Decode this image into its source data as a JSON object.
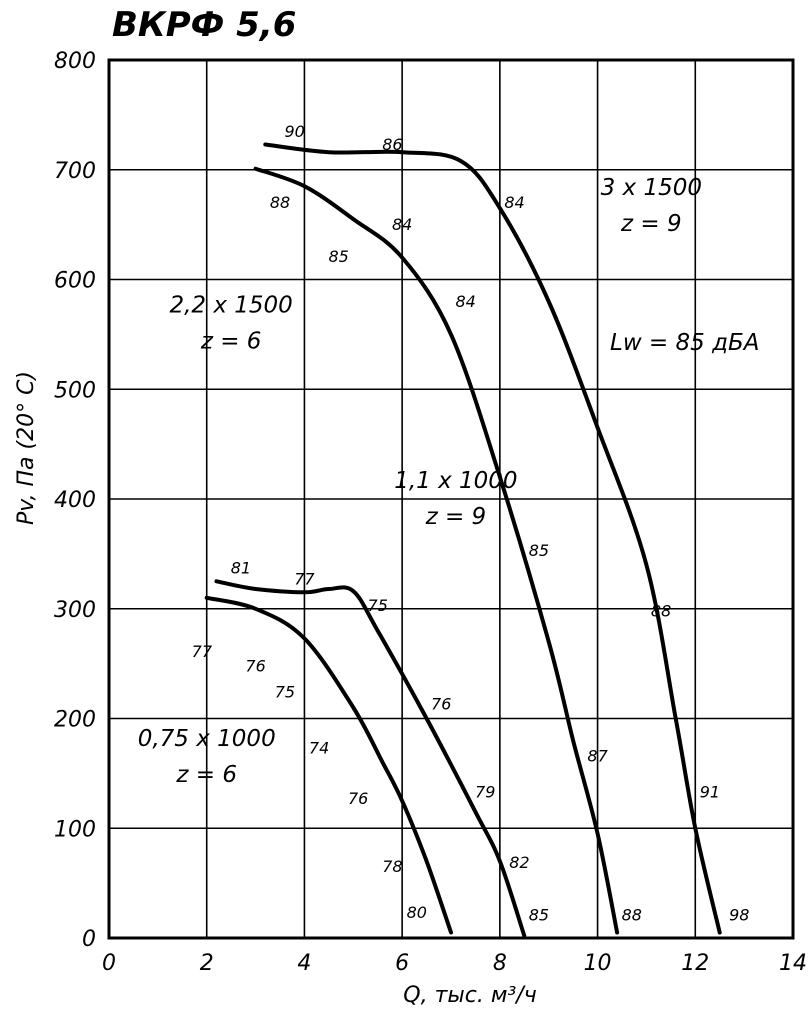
{
  "chart_data": {
    "type": "line",
    "title": "ВКРФ 5,6",
    "xlabel": "Q, тыс. м³/ч",
    "ylabel": "Pv, Па (20° С)",
    "xlim": [
      0,
      14
    ],
    "ylim": [
      0,
      800
    ],
    "grid": true,
    "x_ticks": [
      "0",
      "2",
      "4",
      "6",
      "8",
      "10",
      "12",
      "14"
    ],
    "y_ticks": [
      "0",
      "100",
      "200",
      "300",
      "400",
      "500",
      "600",
      "700",
      "800"
    ],
    "series": [
      {
        "name": "0,75 x 1000",
        "z": "z = 6",
        "points": [
          [
            2.0,
            310
          ],
          [
            3.0,
            300
          ],
          [
            4.0,
            273
          ],
          [
            5.0,
            210
          ],
          [
            5.6,
            160
          ],
          [
            6.0,
            125
          ],
          [
            6.5,
            70
          ],
          [
            7.0,
            5
          ]
        ]
      },
      {
        "name": "1,1 x 1000",
        "z": "z = 9",
        "points": [
          [
            2.2,
            325
          ],
          [
            3.0,
            318
          ],
          [
            4.0,
            315
          ],
          [
            4.5,
            318
          ],
          [
            5.0,
            316
          ],
          [
            5.5,
            280
          ],
          [
            6.5,
            200
          ],
          [
            7.5,
            115
          ],
          [
            8.0,
            70
          ],
          [
            8.5,
            2
          ]
        ]
      },
      {
        "name": "2,2 x 1500",
        "z": "z = 6",
        "points": [
          [
            3.0,
            701
          ],
          [
            4.0,
            685
          ],
          [
            5.0,
            655
          ],
          [
            6.0,
            620
          ],
          [
            7.0,
            550
          ],
          [
            8.0,
            420
          ],
          [
            9.0,
            270
          ],
          [
            9.5,
            180
          ],
          [
            10.0,
            95
          ],
          [
            10.4,
            5
          ]
        ]
      },
      {
        "name": "3 x 1500",
        "z": "z = 9",
        "points": [
          [
            3.2,
            723
          ],
          [
            4.5,
            716
          ],
          [
            6.0,
            716
          ],
          [
            7.2,
            708
          ],
          [
            8.0,
            665
          ],
          [
            9.0,
            580
          ],
          [
            10.0,
            465
          ],
          [
            11.0,
            340
          ],
          [
            11.6,
            200
          ],
          [
            12.0,
            100
          ],
          [
            12.5,
            5
          ]
        ]
      }
    ],
    "annotations": {
      "lw": "Lw = 85 дБА",
      "noise": [
        {
          "text": "90",
          "x": 3.8,
          "y": 730
        },
        {
          "text": "86",
          "x": 5.8,
          "y": 718
        },
        {
          "text": "84",
          "x": 8.3,
          "y": 665
        },
        {
          "text": "88",
          "x": 3.5,
          "y": 665
        },
        {
          "text": "84",
          "x": 6.0,
          "y": 645
        },
        {
          "text": "85",
          "x": 4.7,
          "y": 616
        },
        {
          "text": "84",
          "x": 7.3,
          "y": 575
        },
        {
          "text": "85",
          "x": 8.8,
          "y": 348
        },
        {
          "text": "88",
          "x": 11.3,
          "y": 293
        },
        {
          "text": "81",
          "x": 2.7,
          "y": 332
        },
        {
          "text": "77",
          "x": 4.0,
          "y": 322
        },
        {
          "text": "75",
          "x": 5.5,
          "y": 298
        },
        {
          "text": "77",
          "x": 1.9,
          "y": 256
        },
        {
          "text": "76",
          "x": 3.0,
          "y": 243
        },
        {
          "text": "75",
          "x": 3.6,
          "y": 219
        },
        {
          "text": "76",
          "x": 6.8,
          "y": 208
        },
        {
          "text": "74",
          "x": 4.3,
          "y": 168
        },
        {
          "text": "87",
          "x": 10.0,
          "y": 161
        },
        {
          "text": "79",
          "x": 7.7,
          "y": 128
        },
        {
          "text": "91",
          "x": 12.3,
          "y": 128
        },
        {
          "text": "76",
          "x": 5.1,
          "y": 122
        },
        {
          "text": "82",
          "x": 8.4,
          "y": 64
        },
        {
          "text": "78",
          "x": 5.8,
          "y": 60
        },
        {
          "text": "80",
          "x": 6.3,
          "y": 18
        },
        {
          "text": "85",
          "x": 8.8,
          "y": 16
        },
        {
          "text": "88",
          "x": 10.7,
          "y": 16
        },
        {
          "text": "98",
          "x": 12.9,
          "y": 16
        }
      ]
    }
  }
}
